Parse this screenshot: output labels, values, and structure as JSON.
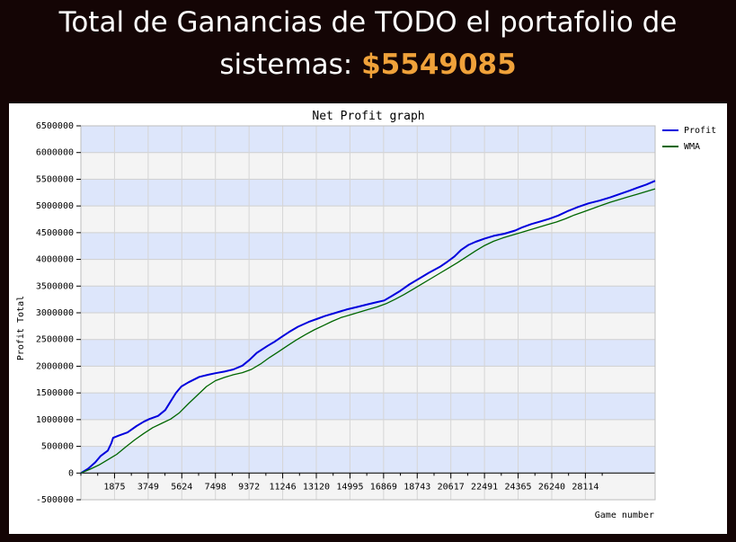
{
  "headline": {
    "line1": "Total de Ganancias de TODO el portafolio de",
    "line2_prefix": "sistemas: ",
    "amount": "$5549085"
  },
  "colors": {
    "background": "#140505",
    "amount": "#f0a23a",
    "band_blue": "#dde6fb",
    "band_gray": "#f4f4f4",
    "profit": "#0000dd",
    "wma": "#006600"
  },
  "chart_data": {
    "type": "line",
    "title": "Net Profit graph",
    "xlabel": "Game number",
    "ylabel": "Profit Total",
    "xlim": [
      0,
      32000
    ],
    "ylim": [
      -500000,
      6500000
    ],
    "x_ticks": [
      "1875",
      "3749",
      "5624",
      "7498",
      "9372",
      "11246",
      "13120",
      "14995",
      "16869",
      "18743",
      "20617",
      "22491",
      "24365",
      "26240",
      "28114"
    ],
    "y_ticks": [
      "6500000",
      "6000000",
      "5500000",
      "5000000",
      "4500000",
      "4000000",
      "3500000",
      "3000000",
      "2500000",
      "2000000",
      "1500000",
      "1000000",
      "500000",
      "0",
      "-500000"
    ],
    "grid": true,
    "legend_position": "top-right",
    "series": [
      {
        "name": "Profit",
        "color": "#0000dd",
        "x": [
          0,
          400,
          800,
          1100,
          1500,
          1700,
          1800,
          2100,
          2600,
          3100,
          3500,
          3800,
          4300,
          4700,
          5000,
          5300,
          5600,
          6000,
          6600,
          7100,
          7500,
          8000,
          8500,
          9000,
          9400,
          9800,
          10400,
          10800,
          11200,
          11600,
          12100,
          12700,
          13200,
          13600,
          14200,
          14800,
          15400,
          16000,
          16500,
          16900,
          17300,
          17800,
          18300,
          18900,
          19400,
          20000,
          20400,
          20800,
          21200,
          21600,
          22000,
          22500,
          23000,
          23600,
          24200,
          24600,
          25100,
          25600,
          26100,
          26600,
          27100,
          27700,
          28300,
          28900,
          29500,
          30000,
          30600,
          31000,
          31500,
          32000
        ],
        "values": [
          0,
          80000,
          200000,
          320000,
          420000,
          560000,
          660000,
          700000,
          760000,
          880000,
          960000,
          1010000,
          1070000,
          1180000,
          1340000,
          1500000,
          1620000,
          1700000,
          1800000,
          1840000,
          1870000,
          1900000,
          1940000,
          2010000,
          2120000,
          2250000,
          2380000,
          2460000,
          2550000,
          2640000,
          2740000,
          2830000,
          2890000,
          2940000,
          3000000,
          3060000,
          3110000,
          3160000,
          3200000,
          3230000,
          3310000,
          3410000,
          3530000,
          3650000,
          3750000,
          3860000,
          3950000,
          4050000,
          4180000,
          4270000,
          4330000,
          4390000,
          4440000,
          4480000,
          4540000,
          4600000,
          4660000,
          4710000,
          4760000,
          4820000,
          4900000,
          4980000,
          5050000,
          5100000,
          5160000,
          5220000,
          5290000,
          5340000,
          5400000,
          5470000
        ]
      },
      {
        "name": "WMA",
        "color": "#006600",
        "x": [
          0,
          500,
          1000,
          1500,
          2000,
          2500,
          3000,
          3500,
          4000,
          4500,
          5000,
          5500,
          6000,
          6500,
          7000,
          7500,
          8000,
          8500,
          9000,
          9500,
          10000,
          10500,
          11000,
          11500,
          12000,
          12500,
          13000,
          13500,
          14000,
          14500,
          15000,
          15500,
          16000,
          16500,
          17000,
          17500,
          18000,
          18500,
          19000,
          19500,
          20000,
          20500,
          21000,
          21500,
          22000,
          22500,
          23000,
          23500,
          24000,
          24500,
          25000,
          25500,
          26000,
          26500,
          27000,
          27500,
          28000,
          28500,
          29000,
          29500,
          30000,
          30500,
          31000,
          31500,
          32000
        ],
        "values": [
          0,
          70000,
          150000,
          250000,
          350000,
          490000,
          620000,
          740000,
          850000,
          930000,
          1010000,
          1130000,
          1300000,
          1460000,
          1620000,
          1730000,
          1790000,
          1840000,
          1880000,
          1940000,
          2040000,
          2160000,
          2270000,
          2380000,
          2490000,
          2590000,
          2680000,
          2760000,
          2840000,
          2910000,
          2960000,
          3010000,
          3060000,
          3110000,
          3170000,
          3250000,
          3340000,
          3440000,
          3540000,
          3640000,
          3740000,
          3840000,
          3940000,
          4050000,
          4160000,
          4260000,
          4340000,
          4400000,
          4450000,
          4500000,
          4550000,
          4600000,
          4650000,
          4700000,
          4760000,
          4830000,
          4890000,
          4950000,
          5010000,
          5070000,
          5120000,
          5170000,
          5220000,
          5270000,
          5320000
        ]
      }
    ]
  }
}
